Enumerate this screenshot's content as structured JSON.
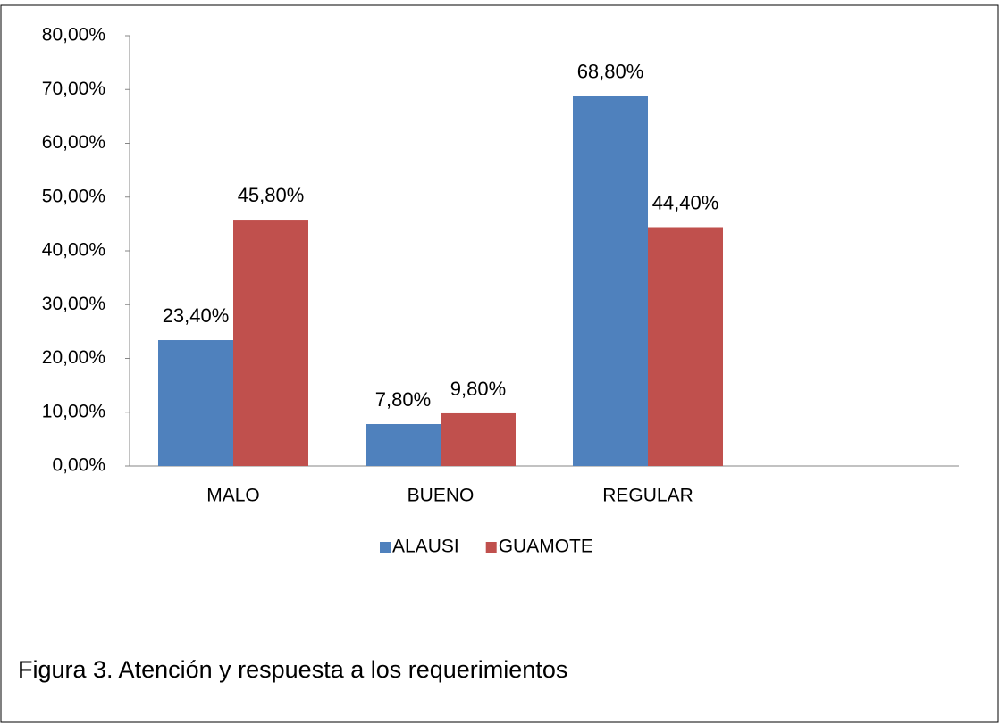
{
  "chart_data": {
    "type": "bar",
    "categories": [
      "MALO",
      "BUENO",
      "REGULAR",
      null
    ],
    "series": [
      {
        "name": "ALAUSI",
        "color": "#4f81bd",
        "values": [
          23.4,
          7.8,
          68.8,
          null
        ],
        "value_labels": [
          "23,40%",
          "7,80%",
          "68,80%",
          null
        ]
      },
      {
        "name": "GUAMOTE",
        "color": "#c0504d",
        "values": [
          45.8,
          9.8,
          44.4,
          null
        ],
        "value_labels": [
          "45,80%",
          "9,80%",
          "44,40%",
          null
        ]
      }
    ],
    "ylim": [
      0,
      80
    ],
    "yticks": [
      {
        "value": 0,
        "label": "0,00%"
      },
      {
        "value": 10,
        "label": "10,00%"
      },
      {
        "value": 20,
        "label": "20,00%"
      },
      {
        "value": 30,
        "label": "30,00%"
      },
      {
        "value": 40,
        "label": "40,00%"
      },
      {
        "value": 50,
        "label": "50,00%"
      },
      {
        "value": 60,
        "label": "60,00%"
      },
      {
        "value": 70,
        "label": "70,00%"
      },
      {
        "value": 80,
        "label": "80,00%"
      }
    ],
    "grid": false,
    "legend": "bottom",
    "caption": "Figura 3.  Atención y respuesta a los requerimientos"
  }
}
